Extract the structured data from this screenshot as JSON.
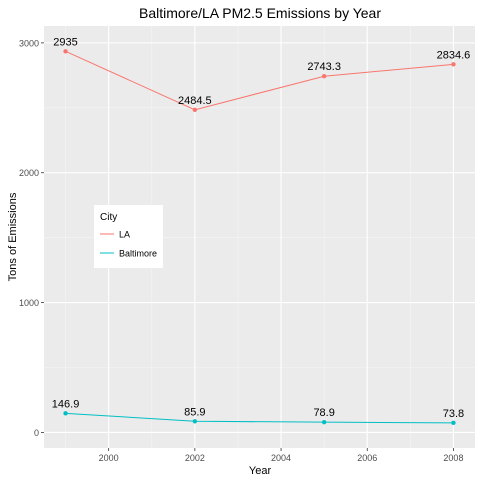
{
  "chart_data": {
    "type": "line",
    "title": "Baltimore/LA PM2.5 Emissions by Year",
    "xlabel": "Year",
    "ylabel": "Tons of Emissions",
    "xlim": [
      1998.5,
      2008.5
    ],
    "ylim": [
      -120,
      3130
    ],
    "x_ticks": [
      2000,
      2002,
      2004,
      2006,
      2008
    ],
    "x_tick_labels": [
      "2000",
      "2002",
      "2004",
      "2006",
      "2008"
    ],
    "y_ticks": [
      0,
      1000,
      2000,
      3000
    ],
    "y_tick_labels": [
      "0",
      "1000",
      "2000",
      "3000"
    ],
    "grid": true,
    "x": [
      1999,
      2002,
      2005,
      2008
    ],
    "series": [
      {
        "name": "LA",
        "color": "#F8766D",
        "values": [
          2935,
          2484.5,
          2743.3,
          2834.6
        ],
        "labels": [
          "2935",
          "2484.5",
          "2743.3",
          "2834.6"
        ]
      },
      {
        "name": "Baltimore",
        "color": "#00BFC4",
        "values": [
          146.9,
          85.9,
          78.9,
          73.8
        ],
        "labels": [
          "146.9",
          "85.9",
          "78.9",
          "73.8"
        ]
      }
    ],
    "legend": {
      "title": "City",
      "placement": "inside-left"
    }
  }
}
